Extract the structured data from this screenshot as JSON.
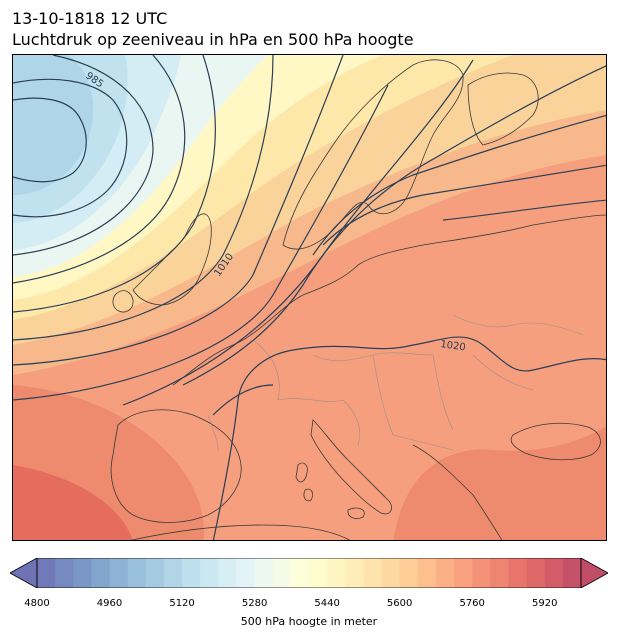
{
  "title": {
    "line1": "13-10-1818 12 UTC",
    "line2": "Luchtdruk op zeeniveau in hPa en 500 hPa hoogte"
  },
  "map": {
    "region": "Europe and North Atlantic",
    "field_fill": "500 hPa geopotential height",
    "field_contours": "mean sea level pressure (hPa)",
    "isobar_labels": [
      "985",
      "1010",
      "1020"
    ],
    "isobar_color": "#2b3f55",
    "coastline_color": "#3a3a3a",
    "border_color": "#8a8a8a"
  },
  "colorbar": {
    "min": 4800,
    "max": 6000,
    "step": 40,
    "ticks": [
      "4800",
      "4960",
      "5120",
      "5280",
      "5440",
      "5600",
      "5760",
      "5920"
    ],
    "label": "500 hPa hoogte in meter",
    "colormap": "RdYlBu_r (alpha 0.7)"
  }
}
